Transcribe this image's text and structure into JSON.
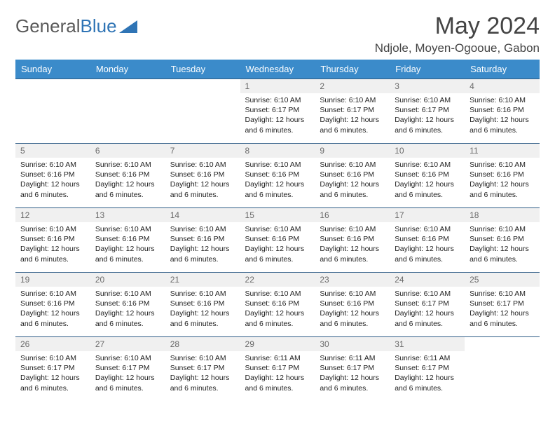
{
  "brand": {
    "part1": "General",
    "part2": "Blue"
  },
  "title": "May 2024",
  "location": "Ndjole, Moyen-Ogooue, Gabon",
  "colors": {
    "header_bg": "#3b8bca",
    "header_text": "#ffffff",
    "row_border": "#2f5d87",
    "daynum_bg": "#f0f0f0",
    "daynum_text": "#6b6b6b",
    "body_text": "#222222",
    "logo_gray": "#5a5a5a",
    "logo_blue": "#2f74b5"
  },
  "weekdays": [
    "Sunday",
    "Monday",
    "Tuesday",
    "Wednesday",
    "Thursday",
    "Friday",
    "Saturday"
  ],
  "weeks": [
    [
      {
        "n": "",
        "sr": "",
        "ss": "",
        "dl": "",
        "empty": true
      },
      {
        "n": "",
        "sr": "",
        "ss": "",
        "dl": "",
        "empty": true
      },
      {
        "n": "",
        "sr": "",
        "ss": "",
        "dl": "",
        "empty": true
      },
      {
        "n": "1",
        "sr": "Sunrise: 6:10 AM",
        "ss": "Sunset: 6:17 PM",
        "dl": "Daylight: 12 hours and 6 minutes."
      },
      {
        "n": "2",
        "sr": "Sunrise: 6:10 AM",
        "ss": "Sunset: 6:17 PM",
        "dl": "Daylight: 12 hours and 6 minutes."
      },
      {
        "n": "3",
        "sr": "Sunrise: 6:10 AM",
        "ss": "Sunset: 6:17 PM",
        "dl": "Daylight: 12 hours and 6 minutes."
      },
      {
        "n": "4",
        "sr": "Sunrise: 6:10 AM",
        "ss": "Sunset: 6:16 PM",
        "dl": "Daylight: 12 hours and 6 minutes."
      }
    ],
    [
      {
        "n": "5",
        "sr": "Sunrise: 6:10 AM",
        "ss": "Sunset: 6:16 PM",
        "dl": "Daylight: 12 hours and 6 minutes."
      },
      {
        "n": "6",
        "sr": "Sunrise: 6:10 AM",
        "ss": "Sunset: 6:16 PM",
        "dl": "Daylight: 12 hours and 6 minutes."
      },
      {
        "n": "7",
        "sr": "Sunrise: 6:10 AM",
        "ss": "Sunset: 6:16 PM",
        "dl": "Daylight: 12 hours and 6 minutes."
      },
      {
        "n": "8",
        "sr": "Sunrise: 6:10 AM",
        "ss": "Sunset: 6:16 PM",
        "dl": "Daylight: 12 hours and 6 minutes."
      },
      {
        "n": "9",
        "sr": "Sunrise: 6:10 AM",
        "ss": "Sunset: 6:16 PM",
        "dl": "Daylight: 12 hours and 6 minutes."
      },
      {
        "n": "10",
        "sr": "Sunrise: 6:10 AM",
        "ss": "Sunset: 6:16 PM",
        "dl": "Daylight: 12 hours and 6 minutes."
      },
      {
        "n": "11",
        "sr": "Sunrise: 6:10 AM",
        "ss": "Sunset: 6:16 PM",
        "dl": "Daylight: 12 hours and 6 minutes."
      }
    ],
    [
      {
        "n": "12",
        "sr": "Sunrise: 6:10 AM",
        "ss": "Sunset: 6:16 PM",
        "dl": "Daylight: 12 hours and 6 minutes."
      },
      {
        "n": "13",
        "sr": "Sunrise: 6:10 AM",
        "ss": "Sunset: 6:16 PM",
        "dl": "Daylight: 12 hours and 6 minutes."
      },
      {
        "n": "14",
        "sr": "Sunrise: 6:10 AM",
        "ss": "Sunset: 6:16 PM",
        "dl": "Daylight: 12 hours and 6 minutes."
      },
      {
        "n": "15",
        "sr": "Sunrise: 6:10 AM",
        "ss": "Sunset: 6:16 PM",
        "dl": "Daylight: 12 hours and 6 minutes."
      },
      {
        "n": "16",
        "sr": "Sunrise: 6:10 AM",
        "ss": "Sunset: 6:16 PM",
        "dl": "Daylight: 12 hours and 6 minutes."
      },
      {
        "n": "17",
        "sr": "Sunrise: 6:10 AM",
        "ss": "Sunset: 6:16 PM",
        "dl": "Daylight: 12 hours and 6 minutes."
      },
      {
        "n": "18",
        "sr": "Sunrise: 6:10 AM",
        "ss": "Sunset: 6:16 PM",
        "dl": "Daylight: 12 hours and 6 minutes."
      }
    ],
    [
      {
        "n": "19",
        "sr": "Sunrise: 6:10 AM",
        "ss": "Sunset: 6:16 PM",
        "dl": "Daylight: 12 hours and 6 minutes."
      },
      {
        "n": "20",
        "sr": "Sunrise: 6:10 AM",
        "ss": "Sunset: 6:16 PM",
        "dl": "Daylight: 12 hours and 6 minutes."
      },
      {
        "n": "21",
        "sr": "Sunrise: 6:10 AM",
        "ss": "Sunset: 6:16 PM",
        "dl": "Daylight: 12 hours and 6 minutes."
      },
      {
        "n": "22",
        "sr": "Sunrise: 6:10 AM",
        "ss": "Sunset: 6:16 PM",
        "dl": "Daylight: 12 hours and 6 minutes."
      },
      {
        "n": "23",
        "sr": "Sunrise: 6:10 AM",
        "ss": "Sunset: 6:16 PM",
        "dl": "Daylight: 12 hours and 6 minutes."
      },
      {
        "n": "24",
        "sr": "Sunrise: 6:10 AM",
        "ss": "Sunset: 6:17 PM",
        "dl": "Daylight: 12 hours and 6 minutes."
      },
      {
        "n": "25",
        "sr": "Sunrise: 6:10 AM",
        "ss": "Sunset: 6:17 PM",
        "dl": "Daylight: 12 hours and 6 minutes."
      }
    ],
    [
      {
        "n": "26",
        "sr": "Sunrise: 6:10 AM",
        "ss": "Sunset: 6:17 PM",
        "dl": "Daylight: 12 hours and 6 minutes."
      },
      {
        "n": "27",
        "sr": "Sunrise: 6:10 AM",
        "ss": "Sunset: 6:17 PM",
        "dl": "Daylight: 12 hours and 6 minutes."
      },
      {
        "n": "28",
        "sr": "Sunrise: 6:10 AM",
        "ss": "Sunset: 6:17 PM",
        "dl": "Daylight: 12 hours and 6 minutes."
      },
      {
        "n": "29",
        "sr": "Sunrise: 6:11 AM",
        "ss": "Sunset: 6:17 PM",
        "dl": "Daylight: 12 hours and 6 minutes."
      },
      {
        "n": "30",
        "sr": "Sunrise: 6:11 AM",
        "ss": "Sunset: 6:17 PM",
        "dl": "Daylight: 12 hours and 6 minutes."
      },
      {
        "n": "31",
        "sr": "Sunrise: 6:11 AM",
        "ss": "Sunset: 6:17 PM",
        "dl": "Daylight: 12 hours and 6 minutes."
      },
      {
        "n": "",
        "sr": "",
        "ss": "",
        "dl": "",
        "empty": true
      }
    ]
  ]
}
